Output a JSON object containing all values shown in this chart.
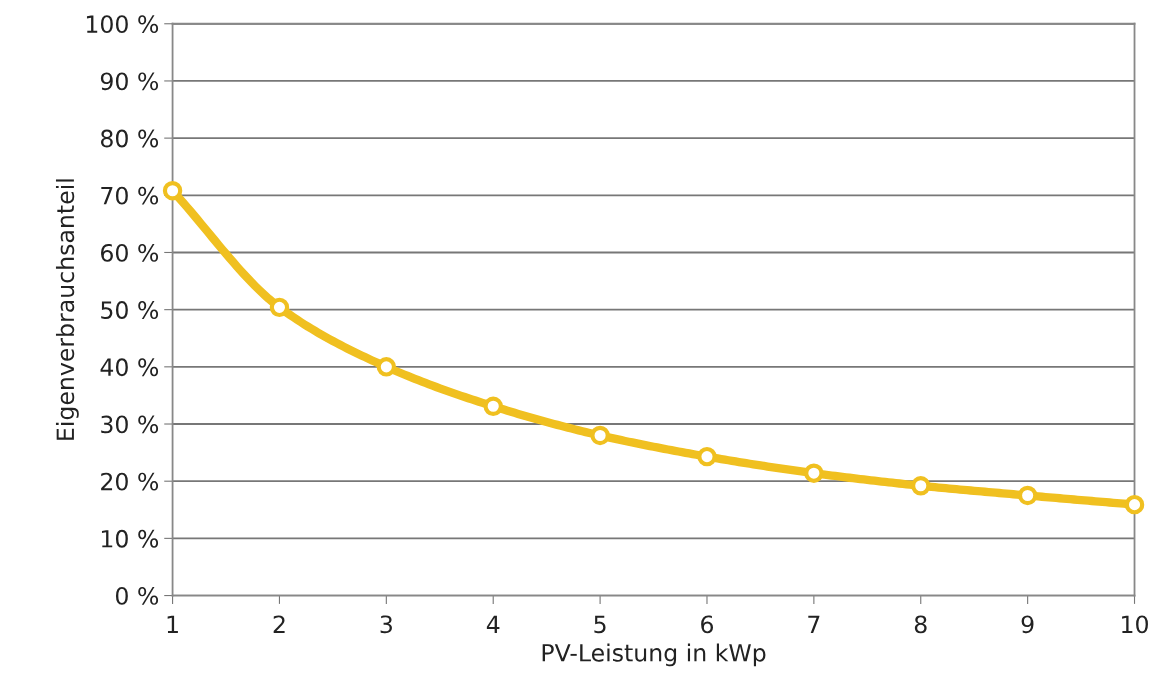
{
  "chart_data": {
    "type": "line",
    "xlabel": "PV-Leistung in kWp",
    "ylabel": "Eigenverbrauchsanteil",
    "x": [
      1,
      2,
      3,
      4,
      5,
      6,
      7,
      8,
      9,
      10
    ],
    "series": [
      {
        "color": "#f0c020",
        "values": [
          70.8,
          50.4,
          40,
          33.1,
          28,
          24.3,
          21.4,
          19.2,
          17.5,
          15.9
        ]
      }
    ],
    "xlim": [
      1,
      10
    ],
    "xticks": [
      1,
      2,
      3,
      4,
      5,
      6,
      7,
      8,
      9,
      10
    ],
    "ylim": [
      0,
      100
    ],
    "yticks": [
      {
        "value": 0,
        "label": "0 %"
      },
      {
        "value": 10,
        "label": "10 %"
      },
      {
        "value": 20,
        "label": "20 %"
      },
      {
        "value": 30,
        "label": "30 %"
      },
      {
        "value": 40,
        "label": "40 %"
      },
      {
        "value": 50,
        "label": "50 %"
      },
      {
        "value": 60,
        "label": "60 %"
      },
      {
        "value": 70,
        "label": "70 %"
      },
      {
        "value": 80,
        "label": "80 %"
      },
      {
        "value": 90,
        "label": "90 %"
      },
      {
        "value": 100,
        "label": "100 %"
      }
    ],
    "grid": "y",
    "marker": "circle",
    "line_style": "solid",
    "legend": false
  }
}
